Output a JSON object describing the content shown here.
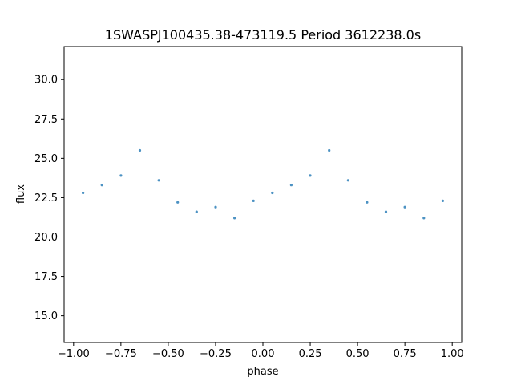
{
  "chart_data": {
    "type": "scatter",
    "title": "1SWASPJ100435.38-473119.5 Period 3612238.0s",
    "xlabel": "phase",
    "ylabel": "flux",
    "xlim": [
      -1.05,
      1.05
    ],
    "ylim": [
      13.3,
      32.1
    ],
    "xticks": [
      -1.0,
      -0.75,
      -0.5,
      -0.25,
      0.0,
      0.25,
      0.5,
      0.75,
      1.0
    ],
    "xtick_labels": [
      "−1.00",
      "−0.75",
      "−0.50",
      "−0.25",
      "0.00",
      "0.25",
      "0.50",
      "0.75",
      "1.00"
    ],
    "yticks": [
      15.0,
      17.5,
      20.0,
      22.5,
      25.0,
      27.5,
      30.0
    ],
    "ytick_labels": [
      "15.0",
      "17.5",
      "20.0",
      "22.5",
      "25.0",
      "27.5",
      "30.0"
    ],
    "grid": false,
    "marker_color": "#1f77b4",
    "series": [
      {
        "x": [
          -0.95,
          -0.85,
          -0.75,
          -0.65,
          -0.55,
          -0.45,
          -0.35,
          -0.25,
          -0.15,
          -0.05,
          0.05,
          0.15,
          0.25,
          0.35,
          0.45,
          0.55,
          0.65,
          0.75,
          0.85,
          0.95
        ],
        "y": [
          22.8,
          23.3,
          23.9,
          25.5,
          23.6,
          22.2,
          21.6,
          21.9,
          21.2,
          22.3,
          22.8,
          23.3,
          23.9,
          25.5,
          23.6,
          22.2,
          21.6,
          21.9,
          21.2,
          22.3
        ]
      }
    ]
  }
}
